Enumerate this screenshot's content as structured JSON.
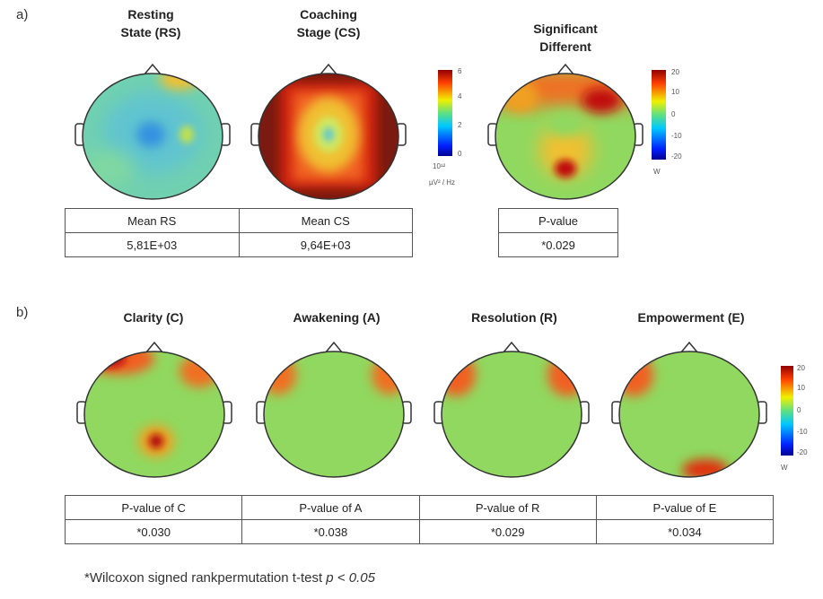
{
  "panel_a": {
    "label": "a)",
    "maps": [
      {
        "title_line1": "Resting",
        "title_line2": "State (RS)"
      },
      {
        "title_line1": "Coaching",
        "title_line2": "Stage (CS)"
      },
      {
        "title_line1": "Significant",
        "title_line2": "Different"
      }
    ],
    "colorbar_power": {
      "ticks": [
        "6",
        "4",
        "2",
        "0"
      ],
      "exponent_label": "10¹²",
      "unit": "µV² / Hz"
    },
    "colorbar_w": {
      "ticks": [
        "20",
        "10",
        "0",
        "-10",
        "-20"
      ],
      "unit": "W"
    },
    "mean_table": {
      "headers": [
        "Mean RS",
        "Mean CS"
      ],
      "values": [
        "5,81E+03",
        "9,64E+03"
      ]
    },
    "p_table": {
      "header": "P-value",
      "value": "*0.029"
    }
  },
  "panel_b": {
    "label": "b)",
    "maps": [
      {
        "title": "Clarity (C)"
      },
      {
        "title": "Awakening (A)"
      },
      {
        "title": "Resolution (R)"
      },
      {
        "title": "Empowerment (E)"
      }
    ],
    "colorbar_w": {
      "ticks": [
        "20",
        "10",
        "0",
        "-10",
        "-20"
      ],
      "unit": "W"
    },
    "p_table": {
      "headers": [
        "P-value of C",
        "P-value of A",
        "P-value of R",
        "P-value of E"
      ],
      "values": [
        "*0.030",
        "*0.038",
        "*0.029",
        "*0.034"
      ]
    }
  },
  "footnote": {
    "text": "*Wilcoxon signed rankpermutation t-test ",
    "math": "p < 0.05"
  },
  "colors": {
    "jet_red": "#cc1010",
    "jet_orange": "#f5a020",
    "jet_yellow": "#e8e040",
    "jet_green": "#8ad868",
    "jet_cyan": "#60c8c8",
    "jet_blue": "#1040d0",
    "dark_red": "#7a1a10"
  }
}
